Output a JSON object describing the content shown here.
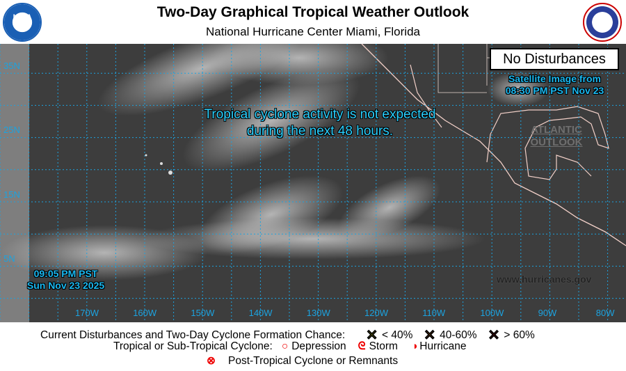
{
  "header": {
    "title": "Two-Day Graphical Tropical Weather Outlook",
    "subtitle": "National Hurricane Center  Miami, Florida",
    "left_logo": "NOAA",
    "right_logo": "NATIONAL WEATHER SERVICE"
  },
  "map": {
    "status_box": "No Disturbances",
    "satellite_line1": "Satellite Image from",
    "satellite_line2": "08:30 PM PST Nov 23",
    "message_line1": "Tropical cyclone activity is not expected",
    "message_line2": "during the next 48 hours.",
    "atlantic_line1": "ATLANTIC",
    "atlantic_line2": "OUTLOOK",
    "issue_time": "09:05 PM PST",
    "issue_date": "Sun Nov 23 2025",
    "website": "www.hurricanes.gov",
    "lat_labels": [
      "35N",
      "25N",
      "15N",
      "5N"
    ],
    "lon_labels": [
      "170W",
      "160W",
      "150W",
      "140W",
      "130W",
      "120W",
      "110W",
      "100W",
      "90W",
      "80W"
    ],
    "grid_color": "#1ca3e0"
  },
  "legend": {
    "formation_label": "Current Disturbances and Two-Day Cyclone Formation Chance:",
    "low": "< 40%",
    "medium": "40-60%",
    "high": "> 60%",
    "low_color": "#ffff00",
    "medium_color": "#ff8c00",
    "high_color": "#e00000",
    "cyclone_label": "Tropical or Sub-Tropical Cyclone:",
    "depression": "Depression",
    "storm": "Storm",
    "hurricane": "Hurricane",
    "post_tropical": "Post-Tropical Cyclone or Remnants"
  }
}
